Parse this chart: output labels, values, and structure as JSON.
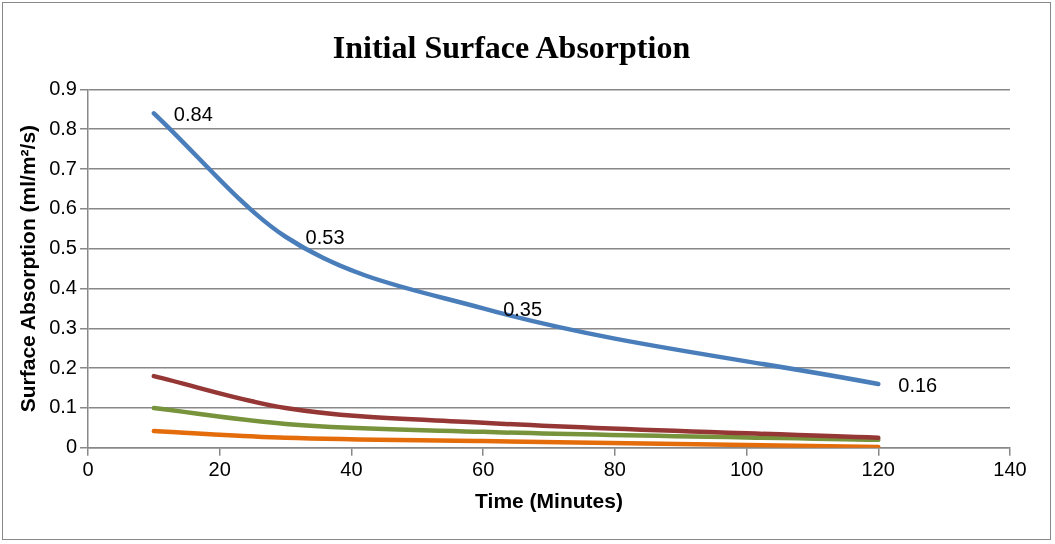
{
  "chart_data": {
    "type": "line",
    "title": "Initial Surface Absorption",
    "xlabel": "Time (Minutes)",
    "ylabel": "Surface Absorption (ml/m²/s)",
    "x": [
      10,
      30,
      60,
      120
    ],
    "series": [
      {
        "color": "#4a7ebb",
        "values": [
          0.84,
          0.53,
          0.35,
          0.16
        ],
        "value_labels": [
          "0.84",
          "0.53",
          "0.35",
          "0.16"
        ]
      },
      {
        "color": "#953735",
        "values": [
          0.18,
          0.1,
          0.063,
          0.025
        ]
      },
      {
        "color": "#77933c",
        "values": [
          0.1,
          0.06,
          0.04,
          0.02
        ]
      },
      {
        "color": "#e46c0a",
        "values": [
          0.042,
          0.025,
          0.017,
          0.002
        ]
      }
    ],
    "xlim": [
      0,
      140
    ],
    "xticks": [
      0,
      20,
      40,
      60,
      80,
      100,
      120,
      140
    ],
    "ylim": [
      0,
      0.9
    ],
    "yticks": [
      0,
      0.1,
      0.2,
      0.3,
      0.4,
      0.5,
      0.6,
      0.7,
      0.8,
      0.9
    ],
    "grid": "y",
    "legend": false,
    "marker": "none",
    "line_style": "solid"
  }
}
